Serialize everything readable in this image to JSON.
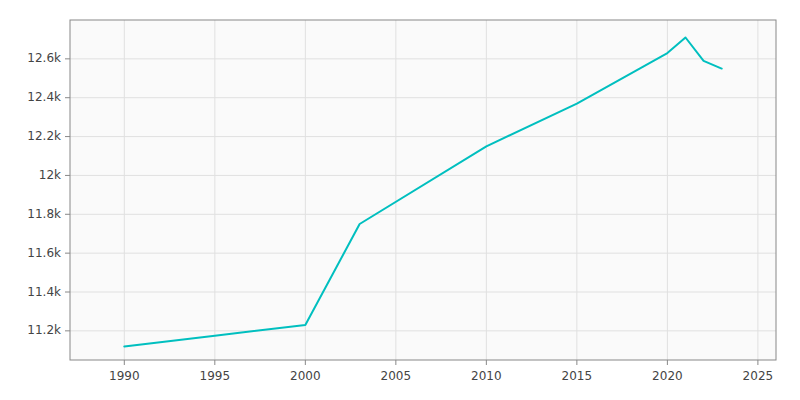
{
  "chart_data": {
    "type": "line",
    "x": [
      1990,
      1995,
      2000,
      2003,
      2010,
      2015,
      2020,
      2021,
      2022,
      2023
    ],
    "values": [
      11120,
      11175,
      11230,
      11750,
      12150,
      12370,
      12630,
      12710,
      12590,
      12550
    ],
    "color": "#00BFBF",
    "xlim": [
      1987,
      2026
    ],
    "ylim": [
      11050,
      12800
    ],
    "xticks": [
      1990,
      1995,
      2000,
      2005,
      2010,
      2015,
      2020,
      2025
    ],
    "yticks": [
      {
        "value": 11200,
        "label": "11.2k"
      },
      {
        "value": 11400,
        "label": "11.4k"
      },
      {
        "value": 11600,
        "label": "11.6k"
      },
      {
        "value": 11800,
        "label": "11.8k"
      },
      {
        "value": 12000,
        "label": "12k"
      },
      {
        "value": 12200,
        "label": "12.2k"
      },
      {
        "value": 12400,
        "label": "12.4k"
      },
      {
        "value": 12600,
        "label": "12.6k"
      }
    ],
    "grid": true
  }
}
